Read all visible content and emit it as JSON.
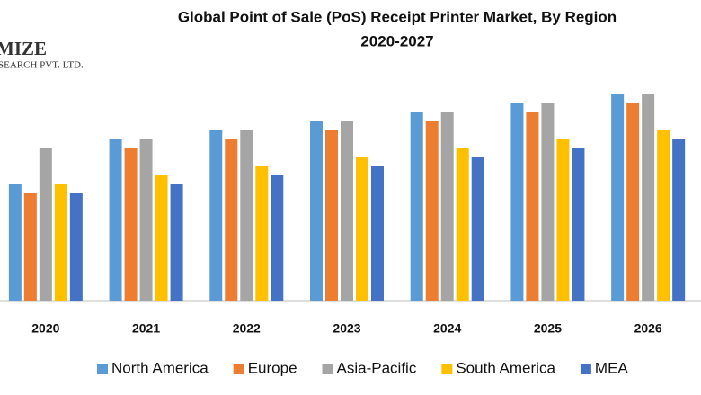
{
  "logo": [
    "MIZE",
    "SEARCH PVT. LTD."
  ],
  "chart_data": {
    "type": "bar",
    "title": "Global Point of Sale (PoS) Receipt Printer Market, By Region",
    "subtitle": "2020-2027",
    "categories": [
      "2020",
      "2021",
      "2022",
      "2023",
      "2024",
      "2025",
      "2026"
    ],
    "series": [
      {
        "name": "North America",
        "color": "#5b9bd5",
        "values": [
          130,
          180,
          190,
          200,
          210,
          220,
          230
        ]
      },
      {
        "name": "Europe",
        "color": "#ed7d31",
        "values": [
          120,
          170,
          180,
          190,
          200,
          210,
          220
        ]
      },
      {
        "name": "Asia-Pacific",
        "color": "#a5a5a5",
        "values": [
          170,
          180,
          190,
          200,
          210,
          220,
          230
        ]
      },
      {
        "name": "South America",
        "color": "#ffc000",
        "values": [
          130,
          140,
          150,
          160,
          170,
          180,
          190
        ]
      },
      {
        "name": "MEA",
        "color": "#4472c4",
        "values": [
          120,
          130,
          140,
          150,
          160,
          170,
          180
        ]
      }
    ],
    "ylim": [
      0,
      240
    ],
    "legend": "bottom"
  }
}
